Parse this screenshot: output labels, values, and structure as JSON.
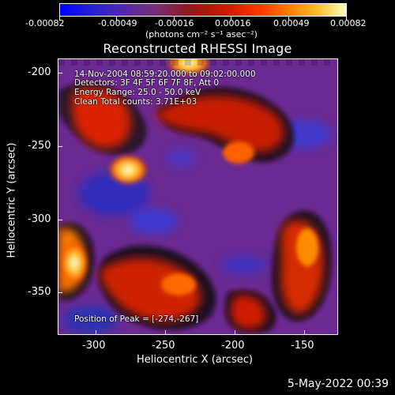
{
  "colorbar": {
    "tick_labels": [
      "-0.00082",
      "-0.00049",
      "-0.00016",
      "0.00016",
      "0.00049",
      "0.00082"
    ],
    "units_label": "(photons cm⁻² s⁻¹ asec⁻²)"
  },
  "title": "Reconstructed RHESSI Image",
  "image_info": {
    "time_range": "14-Nov-2004 08:59:20.000 to 09:02:00.000",
    "detectors": "Detectors: 3F 4F 5F 6F 7F 8F, Att 0",
    "energy": "Energy Range: 25.0 - 50.0 keV",
    "clean_counts": "Clean    Total counts: 3.71E+03",
    "peak": "Position of Peak = [-274,-267]"
  },
  "axes": {
    "xlabel": "Heliocentric X (arcsec)",
    "ylabel": "Heliocentric Y (arcsec)",
    "x_ticks": [
      "-300",
      "-250",
      "-200",
      "-150"
    ],
    "y_ticks": [
      "-200",
      "-250",
      "-300",
      "-350"
    ]
  },
  "footer": {
    "timestamp": "5-May-2022 00:39"
  },
  "colors": {
    "background": "#000000",
    "low": "#0000ff",
    "mid": "#6a2a90",
    "high": "#ff4d00",
    "peak": "#ffffd8"
  }
}
